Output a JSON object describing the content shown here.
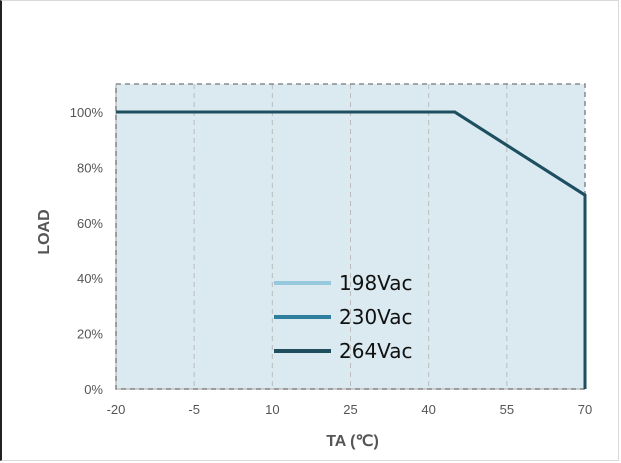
{
  "chart_data": {
    "type": "line",
    "title": "",
    "xlabel": "TA (℃)",
    "ylabel": "LOAD",
    "xlim": [
      -20,
      70
    ],
    "ylim": [
      0,
      110
    ],
    "x_ticks": [
      -20,
      -5,
      10,
      25,
      40,
      55,
      70
    ],
    "x_tick_labels": [
      "-20",
      "-5",
      "10",
      "25",
      "40",
      "55",
      "70"
    ],
    "y_ticks": [
      0,
      20,
      40,
      60,
      80,
      100
    ],
    "y_tick_labels": [
      "0%",
      "20%",
      "40%",
      "60%",
      "80%",
      "100%"
    ],
    "grid": "vertical-dashed",
    "legend_placement": "center",
    "series": [
      {
        "name": "198Vac",
        "color": "#96c9dd",
        "x": [
          -20,
          45,
          70,
          70
        ],
        "y": [
          100,
          100,
          70,
          0
        ]
      },
      {
        "name": "230Vac",
        "color": "#2e7f9d",
        "x": [
          -20,
          45,
          70,
          70
        ],
        "y": [
          100,
          100,
          70,
          0
        ]
      },
      {
        "name": "264Vac",
        "color": "#1f4e5f",
        "x": [
          -20,
          45,
          70,
          70
        ],
        "y": [
          100,
          100,
          70,
          0
        ]
      }
    ],
    "colors": {
      "plot_background": "#daeaf0",
      "grid": "#bcbcbc",
      "axis": "#bfbfbf"
    }
  }
}
